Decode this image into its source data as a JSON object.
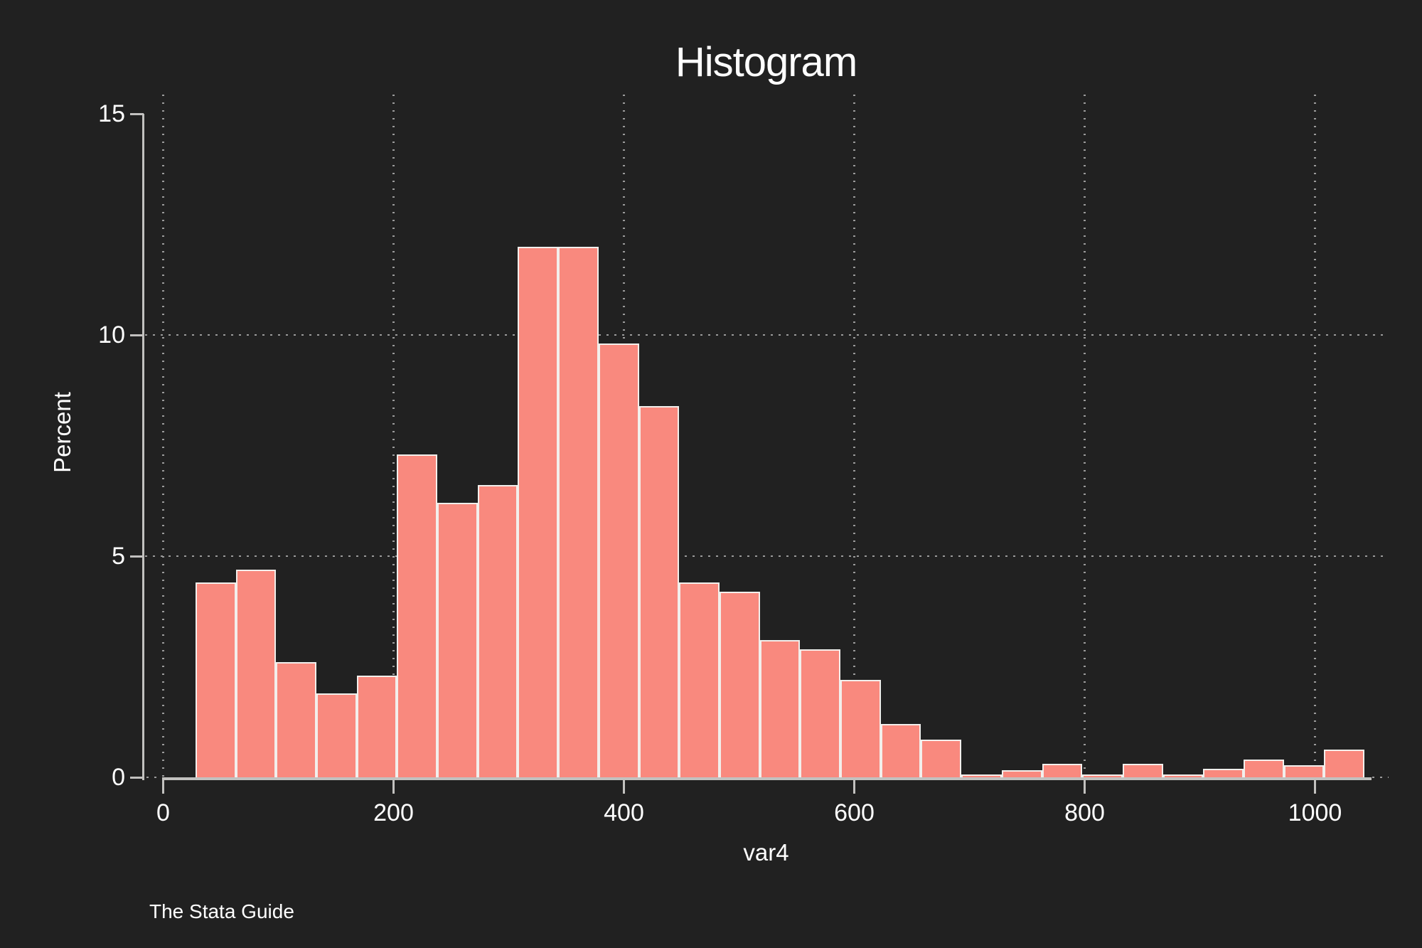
{
  "title": "Histogram",
  "caption": "The Stata Guide",
  "axes": {
    "x_label": "var4",
    "y_label": "Percent"
  },
  "chart_data": {
    "type": "bar",
    "subtype": "histogram",
    "title": "Histogram",
    "xlabel": "var4",
    "ylabel": "Percent",
    "x_ticks": [
      0,
      200,
      400,
      600,
      800,
      1000
    ],
    "y_ticks": [
      0,
      5,
      10,
      15
    ],
    "xlim": [
      0,
      1048
    ],
    "ylim": [
      0,
      15.4
    ],
    "grid": {
      "h_lines": [
        5,
        10
      ],
      "v_lines_at_x_ticks": true,
      "style": "dotted"
    },
    "legend": "none",
    "bin_start": 28,
    "bin_width": 35,
    "values_percent": [
      4.4,
      4.7,
      2.6,
      1.9,
      2.3,
      7.3,
      6.2,
      6.6,
      12,
      12,
      9.8,
      8.4,
      4.4,
      4.2,
      3.1,
      2.9,
      2.2,
      1.2,
      0.85,
      0.07,
      0.16,
      0.3,
      0.07,
      0.3,
      0.07,
      0.2,
      0.4,
      0.28,
      0.63
    ],
    "colors": {
      "background": "#212121",
      "bar_fill": "#f9897e",
      "bar_edge": "#f2efec",
      "axis": "#c2c1bf",
      "grid_dots": "#9b9b9b",
      "text": "#ffffff"
    }
  }
}
